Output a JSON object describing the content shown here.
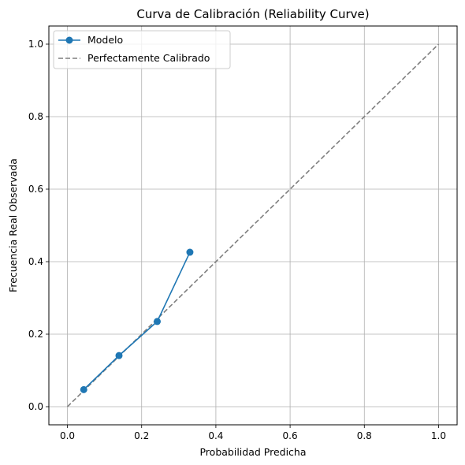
{
  "chart_data": {
    "type": "line",
    "title": "Curva de Calibración (Reliability Curve)",
    "xlabel": "Probabilidad Predicha",
    "ylabel": "Frecuencia Real Observada",
    "xlim": [
      -0.05,
      1.05
    ],
    "ylim": [
      -0.05,
      1.05
    ],
    "xticks": [
      0.0,
      0.2,
      0.4,
      0.6,
      0.8,
      1.0
    ],
    "yticks": [
      0.0,
      0.2,
      0.4,
      0.6,
      0.8,
      1.0
    ],
    "xtick_labels": [
      "0.0",
      "0.2",
      "0.4",
      "0.6",
      "0.8",
      "1.0"
    ],
    "ytick_labels": [
      "0.0",
      "0.2",
      "0.4",
      "0.6",
      "0.8",
      "1.0"
    ],
    "grid": true,
    "legend_position": "top-left",
    "series": [
      {
        "name": "Modelo",
        "x": [
          0.044,
          0.139,
          0.242,
          0.33
        ],
        "y": [
          0.047,
          0.141,
          0.235,
          0.426
        ],
        "color": "#1f77b4",
        "marker": "circle",
        "style": "solid"
      },
      {
        "name": "Perfectamente Calibrado",
        "x": [
          0.0,
          1.0
        ],
        "y": [
          0.0,
          1.0
        ],
        "color": "#7f7f7f",
        "style": "dashed"
      }
    ]
  }
}
